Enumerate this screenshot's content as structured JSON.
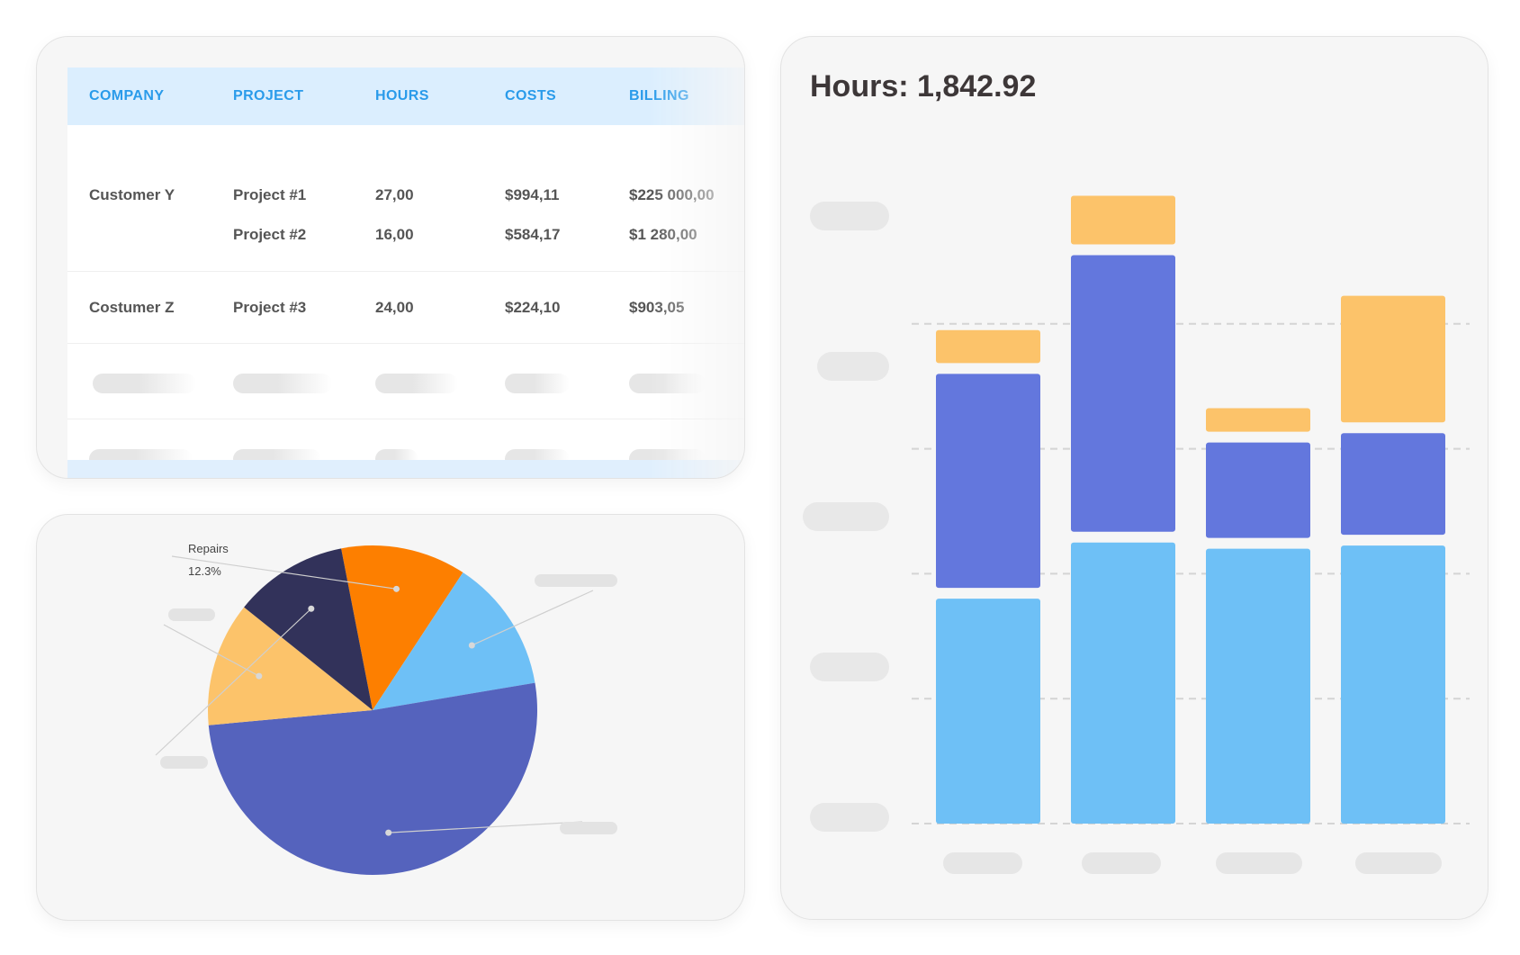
{
  "table": {
    "headers": [
      "COMPANY",
      "PROJECT",
      "HOURS",
      "COSTS",
      "BILLING"
    ],
    "groups": [
      {
        "company": "Customer Y",
        "rows": [
          {
            "project": "Project #1",
            "hours": "27,00",
            "costs": "$994,11",
            "billing": "$225 000,00"
          },
          {
            "project": "Project #2",
            "hours": "16,00",
            "costs": "$584,17",
            "billing": "$1 280,00"
          }
        ]
      },
      {
        "company": "Costumer Z",
        "rows": [
          {
            "project": "Project #3",
            "hours": "24,00",
            "costs": "$224,10",
            "billing": "$903,05"
          }
        ]
      }
    ],
    "colors": {
      "header_bg": "#dbeefe",
      "header_text": "#2a9bea",
      "body_text": "#555555"
    }
  },
  "chart_data": [
    {
      "type": "pie",
      "title": "",
      "slices": [
        {
          "label": "Repairs",
          "percent_label": "12.3%",
          "value": 12.3,
          "color": "#fd7f00"
        },
        {
          "label": "",
          "value": 13.1,
          "color": "#6ec0f6"
        },
        {
          "label": "",
          "value": 51.2,
          "color": "#5563bd"
        },
        {
          "label": "",
          "value": 12.2,
          "color": "#fcc36a"
        },
        {
          "label": "",
          "value": 11.2,
          "color": "#32325a"
        }
      ]
    },
    {
      "type": "bar",
      "stacked": true,
      "title": "Hours: 1,842.92",
      "categories": [
        "",
        "",
        "",
        ""
      ],
      "series": [
        {
          "name": "",
          "color": "#6ec0f6",
          "values": [
            36,
            45,
            44,
            44.5
          ]
        },
        {
          "name": "",
          "color": "#6377dd",
          "values": [
            36,
            46,
            17,
            18
          ]
        },
        {
          "name": "",
          "color": "#fcc36a",
          "values": [
            7,
            9.5,
            5.5,
            22
          ]
        }
      ],
      "ylim": [
        0,
        100
      ],
      "grid": true
    }
  ]
}
